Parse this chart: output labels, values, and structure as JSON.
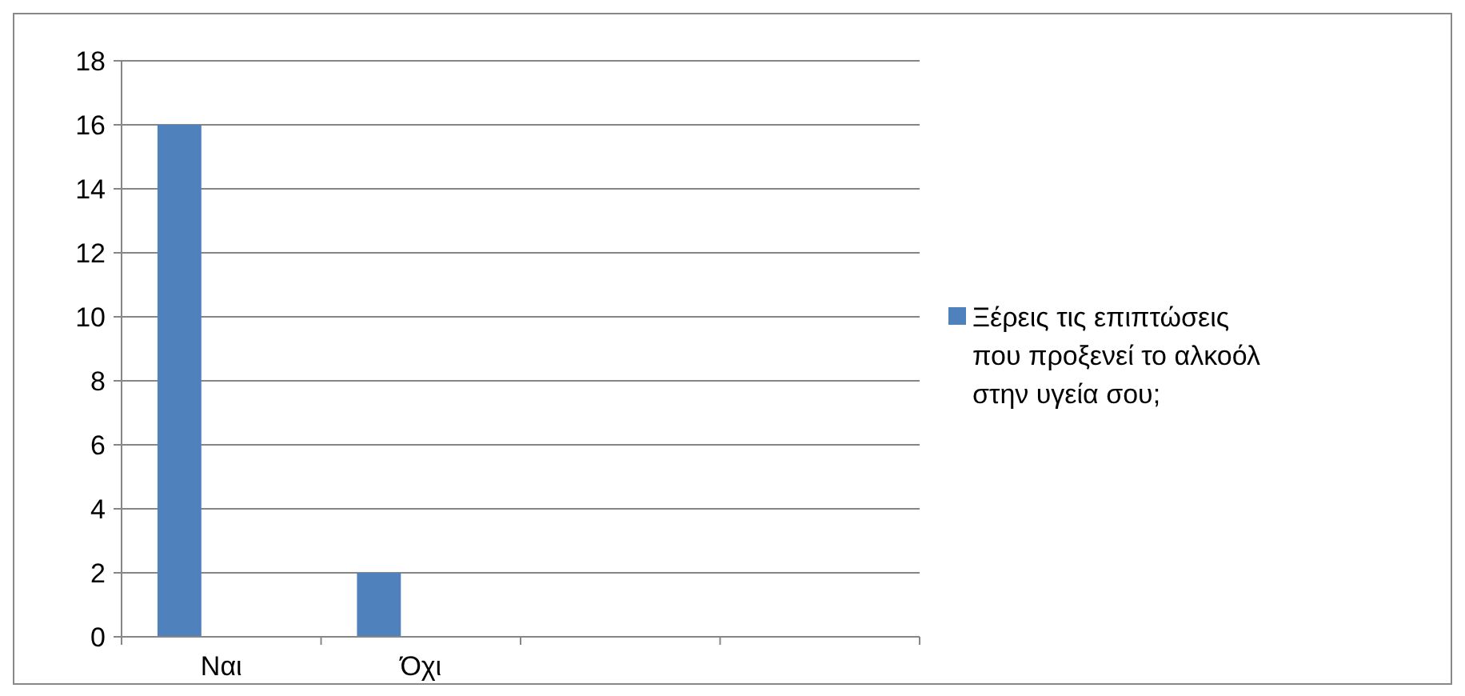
{
  "chart_data": {
    "type": "bar",
    "categories": [
      "Ναι",
      "Όχι",
      null,
      null
    ],
    "series": [
      {
        "name": "Ξέρεις τις επιπτώσεις που προξενεί το αλκοόλ στην υγεία σου;",
        "color": "#4f81bd",
        "values": [
          16,
          2,
          null,
          null
        ]
      }
    ],
    "ylim": [
      0,
      18
    ],
    "yticks": [
      0,
      2,
      4,
      6,
      8,
      10,
      12,
      14,
      16,
      18
    ],
    "grid": "y",
    "legend": "right"
  }
}
